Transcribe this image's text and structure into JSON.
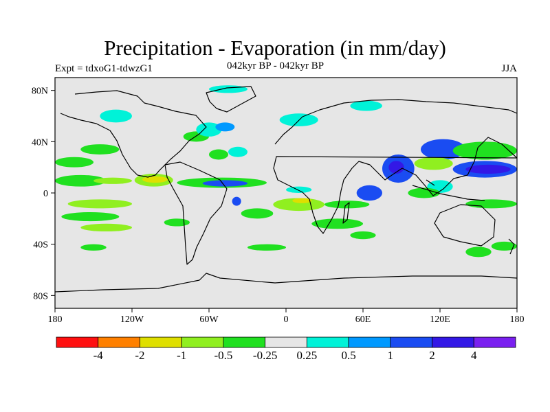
{
  "title": "Precipitation - Evaporation (in mm/day)",
  "subtitle": "042kyr BP - 042kyr BP",
  "experiment": "Expt = tdxoG1-tdwzG1",
  "season": "JJA",
  "chart_data": {
    "type": "heatmap",
    "title": "Precipitation - Evaporation (in mm/day)",
    "xlim": [
      -180,
      180
    ],
    "ylim": [
      -90,
      90
    ],
    "x_ticks": [
      {
        "value": -180,
        "label": "180"
      },
      {
        "value": -120,
        "label": "120W"
      },
      {
        "value": -60,
        "label": "60W"
      },
      {
        "value": 0,
        "label": "0"
      },
      {
        "value": 60,
        "label": "60E"
      },
      {
        "value": 120,
        "label": "120E"
      },
      {
        "value": 180,
        "label": "180"
      }
    ],
    "y_ticks": [
      {
        "value": 80,
        "label": "80N"
      },
      {
        "value": 40,
        "label": "40N"
      },
      {
        "value": 0,
        "label": "0"
      },
      {
        "value": -40,
        "label": "40S"
      },
      {
        "value": -80,
        "label": "80S"
      }
    ],
    "colorbar": {
      "colors": [
        "#ff1010",
        "#ff8000",
        "#dfdf00",
        "#90ef20",
        "#20e020",
        "#e6e6e6",
        "#00f2d8",
        "#0099ff",
        "#1a4cf2",
        "#3318e6",
        "#7a20f0"
      ],
      "labels": [
        "-4",
        "-2",
        "-1",
        "-0.5",
        "-0.25",
        "0.25",
        "0.5",
        "1",
        "2",
        "4"
      ]
    },
    "background_color": "#e6e6e6",
    "anomaly_regions": [
      {
        "lon": [
          -180,
          -140
        ],
        "lat": [
          5,
          14
        ],
        "level": 4
      },
      {
        "lon": [
          -150,
          -120
        ],
        "lat": [
          7,
          12
        ],
        "level": 3
      },
      {
        "lon": [
          -118,
          -88
        ],
        "lat": [
          5,
          15
        ],
        "level": 3
      },
      {
        "lon": [
          -112,
          -92
        ],
        "lat": [
          8,
          13
        ],
        "level": 2
      },
      {
        "lon": [
          -85,
          -15
        ],
        "lat": [
          4,
          12
        ],
        "level": 4
      },
      {
        "lon": [
          -65,
          -30
        ],
        "lat": [
          5,
          10
        ],
        "level": 8
      },
      {
        "lon": [
          -42,
          -35
        ],
        "lat": [
          -10,
          -3
        ],
        "level": 8
      },
      {
        "lon": [
          -170,
          -120
        ],
        "lat": [
          -12,
          -5
        ],
        "level": 3
      },
      {
        "lon": [
          -175,
          -130
        ],
        "lat": [
          -22,
          -15
        ],
        "level": 4
      },
      {
        "lon": [
          -160,
          -120
        ],
        "lat": [
          -30,
          -24
        ],
        "level": 3
      },
      {
        "lon": [
          -95,
          -75
        ],
        "lat": [
          -26,
          -20
        ],
        "level": 4
      },
      {
        "lon": [
          -80,
          -60
        ],
        "lat": [
          40,
          48
        ],
        "level": 4
      },
      {
        "lon": [
          -70,
          -50
        ],
        "lat": [
          44,
          55
        ],
        "level": 6
      },
      {
        "lon": [
          -55,
          -40
        ],
        "lat": [
          48,
          55
        ],
        "level": 7
      },
      {
        "lon": [
          -60,
          -45
        ],
        "lat": [
          26,
          34
        ],
        "level": 4
      },
      {
        "lon": [
          -45,
          -30
        ],
        "lat": [
          28,
          36
        ],
        "level": 6
      },
      {
        "lon": [
          -160,
          -130
        ],
        "lat": [
          30,
          38
        ],
        "level": 4
      },
      {
        "lon": [
          -180,
          -150
        ],
        "lat": [
          20,
          28
        ],
        "level": 4
      },
      {
        "lon": [
          -145,
          -120
        ],
        "lat": [
          55,
          65
        ],
        "level": 6
      },
      {
        "lon": [
          -60,
          -30
        ],
        "lat": [
          78,
          84
        ],
        "level": 6
      },
      {
        "lon": [
          -10,
          30
        ],
        "lat": [
          -14,
          -4
        ],
        "level": 3
      },
      {
        "lon": [
          5,
          20
        ],
        "lat": [
          -8,
          -4
        ],
        "level": 2
      },
      {
        "lon": [
          30,
          65
        ],
        "lat": [
          -12,
          -6
        ],
        "level": 4
      },
      {
        "lon": [
          0,
          20
        ],
        "lat": [
          0,
          5
        ],
        "level": 6
      },
      {
        "lon": [
          -35,
          -10
        ],
        "lat": [
          -20,
          -12
        ],
        "level": 4
      },
      {
        "lon": [
          -5,
          25
        ],
        "lat": [
          52,
          62
        ],
        "level": 6
      },
      {
        "lon": [
          50,
          75
        ],
        "lat": [
          64,
          72
        ],
        "level": 6
      },
      {
        "lon": [
          55,
          75
        ],
        "lat": [
          -6,
          6
        ],
        "level": 8
      },
      {
        "lon": [
          75,
          100
        ],
        "lat": [
          8,
          30
        ],
        "level": 8
      },
      {
        "lon": [
          80,
          92
        ],
        "lat": [
          15,
          25
        ],
        "level": 9
      },
      {
        "lon": [
          105,
          140
        ],
        "lat": [
          26,
          42
        ],
        "level": 8
      },
      {
        "lon": [
          100,
          130
        ],
        "lat": [
          18,
          28
        ],
        "level": 3
      },
      {
        "lon": [
          130,
          180
        ],
        "lat": [
          12,
          25
        ],
        "level": 8
      },
      {
        "lon": [
          140,
          175
        ],
        "lat": [
          15,
          22
        ],
        "level": 9
      },
      {
        "lon": [
          110,
          130
        ],
        "lat": [
          0,
          10
        ],
        "level": 6
      },
      {
        "lon": [
          95,
          120
        ],
        "lat": [
          -4,
          4
        ],
        "level": 4
      },
      {
        "lon": [
          130,
          180
        ],
        "lat": [
          26,
          40
        ],
        "level": 4
      },
      {
        "lon": [
          140,
          180
        ],
        "lat": [
          -12,
          -5
        ],
        "level": 4
      },
      {
        "lon": [
          20,
          60
        ],
        "lat": [
          -28,
          -20
        ],
        "level": 4
      },
      {
        "lon": [
          -30,
          0
        ],
        "lat": [
          -45,
          -40
        ],
        "level": 4
      },
      {
        "lon": [
          140,
          160
        ],
        "lat": [
          -50,
          -42
        ],
        "level": 4
      },
      {
        "lon": [
          160,
          180
        ],
        "lat": [
          -45,
          -38
        ],
        "level": 4
      },
      {
        "lon": [
          -160,
          -140
        ],
        "lat": [
          -45,
          -40
        ],
        "level": 4
      },
      {
        "lon": [
          50,
          70
        ],
        "lat": [
          -36,
          -30
        ],
        "level": 4
      }
    ]
  }
}
